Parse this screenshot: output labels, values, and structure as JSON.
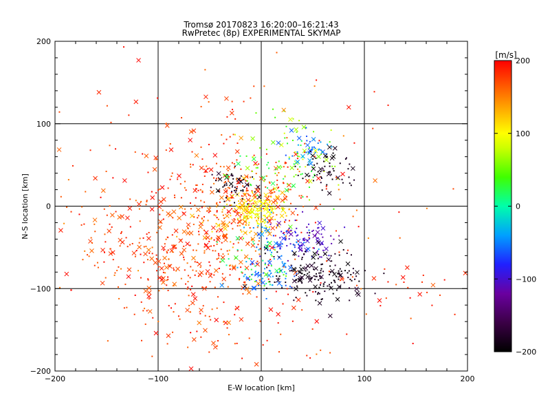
{
  "chart_data": {
    "type": "scatter",
    "title": "Tromsø 20170823 16:20:00–16:21:43",
    "subtitle": "RwPretec (8p) EXPERIMENTAL SKYMAP",
    "xlabel": "E-W location [km]",
    "ylabel": "N-S location [km]",
    "xlim": [
      -200,
      200
    ],
    "ylim": [
      -200,
      200
    ],
    "xticks": [
      "−200",
      "−100",
      "0",
      "100",
      "200"
    ],
    "yticks": [
      "−200",
      "−100",
      "0",
      "100",
      "200"
    ],
    "grid": true,
    "colorbar": {
      "label": "[m/s]",
      "range": [
        -200,
        200
      ],
      "ticks": [
        "200",
        "100",
        "0",
        "−100",
        "−200"
      ],
      "colormap": "rainbow (black → violet → blue → cyan → green → yellow → red)"
    },
    "markers": {
      "meteor_echoes": "cross (×)",
      "other_echoes": "small dot"
    },
    "clusters": [
      {
        "region": "west_field",
        "cx": -80,
        "cy": -50,
        "sx": 55,
        "sy": 45,
        "v": [
          150,
          200
        ],
        "n": 420
      },
      {
        "region": "north_scatter",
        "cx": -40,
        "cy": 90,
        "sx": 60,
        "sy": 45,
        "v": [
          160,
          200
        ],
        "n": 60
      },
      {
        "region": "south_west_red",
        "cx": -30,
        "cy": -130,
        "sx": 40,
        "sy": 35,
        "v": [
          160,
          200
        ],
        "n": 70
      },
      {
        "region": "central_red",
        "cx": -15,
        "cy": 10,
        "sx": 30,
        "sy": 25,
        "v": [
          150,
          200
        ],
        "n": 220
      },
      {
        "region": "center_yellow",
        "cx": -5,
        "cy": -5,
        "sx": 12,
        "sy": 10,
        "v": [
          80,
          130
        ],
        "n": 140
      },
      {
        "region": "center_orange",
        "cx": -20,
        "cy": -20,
        "sx": 20,
        "sy": 18,
        "v": [
          110,
          160
        ],
        "n": 60
      },
      {
        "region": "north_central_black",
        "cx": -25,
        "cy": 25,
        "sx": 12,
        "sy": 10,
        "v": [
          -200,
          -170
        ],
        "n": 50
      },
      {
        "region": "north_east_green",
        "cx": 20,
        "cy": 55,
        "sx": 25,
        "sy": 30,
        "v": [
          10,
          90
        ],
        "n": 110
      },
      {
        "region": "north_east_cyan",
        "cx": 45,
        "cy": 70,
        "sx": 12,
        "sy": 10,
        "v": [
          -70,
          -30
        ],
        "n": 40
      },
      {
        "region": "north_east_black",
        "cx": 65,
        "cy": 45,
        "sx": 15,
        "sy": 12,
        "v": [
          -200,
          -170
        ],
        "n": 60
      },
      {
        "region": "mid_east_blue",
        "cx": 40,
        "cy": -40,
        "sx": 18,
        "sy": 12,
        "v": [
          -120,
          -90
        ],
        "n": 90
      },
      {
        "region": "mid_east_cyan",
        "cx": 15,
        "cy": -35,
        "sx": 15,
        "sy": 15,
        "v": [
          -80,
          -30
        ],
        "n": 50
      },
      {
        "region": "south_east_black",
        "cx": 55,
        "cy": -85,
        "sx": 22,
        "sy": 15,
        "v": [
          -200,
          -170
        ],
        "n": 170
      },
      {
        "region": "south_cyan",
        "cx": 5,
        "cy": -85,
        "sx": 15,
        "sy": 12,
        "v": [
          -70,
          -30
        ],
        "n": 60
      },
      {
        "region": "south_green",
        "cx": -5,
        "cy": -70,
        "sx": 15,
        "sy": 15,
        "v": [
          0,
          60
        ],
        "n": 40
      },
      {
        "region": "east_red_sparse",
        "cx": 130,
        "cy": -100,
        "sx": 40,
        "sy": 30,
        "v": [
          160,
          200
        ],
        "n": 35
      },
      {
        "region": "far_scatter",
        "cx": 0,
        "cy": 0,
        "sx": 120,
        "sy": 110,
        "v": [
          140,
          200
        ],
        "n": 60
      }
    ]
  }
}
